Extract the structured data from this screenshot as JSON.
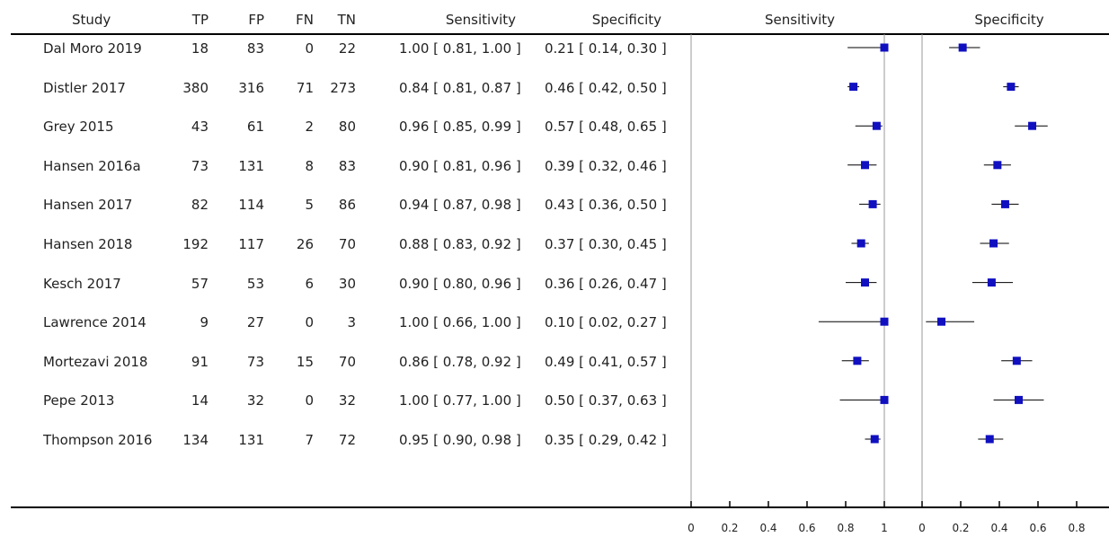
{
  "headers": {
    "study": "Study",
    "tp": "TP",
    "fp": "FP",
    "fn": "FN",
    "tn": "TN",
    "sensitivity": "Sensitivity",
    "specificity": "Specificity",
    "plot_sensitivity": "Sensitivity",
    "plot_specificity": "Specificity"
  },
  "rows": [
    {
      "study": "Dal Moro 2019",
      "tp": "18",
      "fp": "83",
      "fn": "0",
      "tn": "22",
      "sens": "1.00 [ 0.81, 1.00 ]",
      "spec": "0.21 [ 0.14, 0.30 ]"
    },
    {
      "study": "Distler 2017",
      "tp": "380",
      "fp": "316",
      "fn": "71",
      "tn": "273",
      "sens": "0.84 [ 0.81, 0.87 ]",
      "spec": "0.46 [ 0.42, 0.50 ]"
    },
    {
      "study": "Grey 2015",
      "tp": "43",
      "fp": "61",
      "fn": "2",
      "tn": "80",
      "sens": "0.96 [ 0.85, 0.99 ]",
      "spec": "0.57 [ 0.48, 0.65 ]"
    },
    {
      "study": "Hansen 2016a",
      "tp": "73",
      "fp": "131",
      "fn": "8",
      "tn": "83",
      "sens": "0.90 [ 0.81, 0.96 ]",
      "spec": "0.39 [ 0.32, 0.46 ]"
    },
    {
      "study": "Hansen 2017",
      "tp": "82",
      "fp": "114",
      "fn": "5",
      "tn": "86",
      "sens": "0.94 [ 0.87, 0.98 ]",
      "spec": "0.43 [ 0.36, 0.50 ]"
    },
    {
      "study": "Hansen 2018",
      "tp": "192",
      "fp": "117",
      "fn": "26",
      "tn": "70",
      "sens": "0.88 [ 0.83, 0.92 ]",
      "spec": "0.37 [ 0.30, 0.45 ]"
    },
    {
      "study": "Kesch 2017",
      "tp": "57",
      "fp": "53",
      "fn": "6",
      "tn": "30",
      "sens": "0.90 [ 0.80, 0.96 ]",
      "spec": "0.36 [ 0.26, 0.47 ]"
    },
    {
      "study": "Lawrence 2014",
      "tp": "9",
      "fp": "27",
      "fn": "0",
      "tn": "3",
      "sens": "1.00 [ 0.66, 1.00 ]",
      "spec": "0.10 [ 0.02, 0.27 ]"
    },
    {
      "study": "Mortezavi 2018",
      "tp": "91",
      "fp": "73",
      "fn": "15",
      "tn": "70",
      "sens": "0.86 [ 0.78, 0.92 ]",
      "spec": "0.49 [ 0.41, 0.57 ]"
    },
    {
      "study": "Pepe 2013",
      "tp": "14",
      "fp": "32",
      "fn": "0",
      "tn": "32",
      "sens": "1.00 [ 0.77, 1.00 ]",
      "spec": "0.50 [ 0.37, 0.63 ]"
    },
    {
      "study": "Thompson 2016",
      "tp": "134",
      "fp": "131",
      "fn": "7",
      "tn": "72",
      "sens": "0.95 [ 0.90, 0.98 ]",
      "spec": "0.35 [ 0.29, 0.42 ]"
    }
  ],
  "colors": {
    "marker": "#1010c0",
    "line": "#000000",
    "axis": "#999999"
  },
  "chart_data": {
    "type": "forest",
    "panels": [
      {
        "name": "Sensitivity",
        "xlim": [
          0,
          1
        ],
        "ticks": [
          0,
          0.2,
          0.4,
          0.6,
          0.8,
          1
        ],
        "tick_labels": [
          "0",
          "0.2",
          "0.4",
          "0.6",
          "0.8",
          "1"
        ],
        "categories": [
          "Dal Moro 2019",
          "Distler 2017",
          "Grey 2015",
          "Hansen 2016a",
          "Hansen 2017",
          "Hansen 2018",
          "Kesch 2017",
          "Lawrence 2014",
          "Mortezavi 2018",
          "Pepe 2013",
          "Thompson 2016"
        ],
        "estimate": [
          1.0,
          0.84,
          0.96,
          0.9,
          0.94,
          0.88,
          0.9,
          1.0,
          0.86,
          1.0,
          0.95
        ],
        "lower": [
          0.81,
          0.81,
          0.85,
          0.81,
          0.87,
          0.83,
          0.8,
          0.66,
          0.78,
          0.77,
          0.9
        ],
        "upper": [
          1.0,
          0.87,
          0.99,
          0.96,
          0.98,
          0.92,
          0.96,
          1.0,
          0.92,
          1.0,
          0.98
        ]
      },
      {
        "name": "Specificity",
        "xlim": [
          0,
          1
        ],
        "ticks": [
          0,
          0.2,
          0.4,
          0.6,
          0.8
        ],
        "tick_labels": [
          "0",
          "0.2",
          "0.4",
          "0.6",
          "0.8"
        ],
        "categories": [
          "Dal Moro 2019",
          "Distler 2017",
          "Grey 2015",
          "Hansen 2016a",
          "Hansen 2017",
          "Hansen 2018",
          "Kesch 2017",
          "Lawrence 2014",
          "Mortezavi 2018",
          "Pepe 2013",
          "Thompson 2016"
        ],
        "estimate": [
          0.21,
          0.46,
          0.57,
          0.39,
          0.43,
          0.37,
          0.36,
          0.1,
          0.49,
          0.5,
          0.35
        ],
        "lower": [
          0.14,
          0.42,
          0.48,
          0.32,
          0.36,
          0.3,
          0.26,
          0.02,
          0.41,
          0.37,
          0.29
        ],
        "upper": [
          0.3,
          0.5,
          0.65,
          0.46,
          0.5,
          0.45,
          0.47,
          0.27,
          0.57,
          0.63,
          0.42
        ]
      }
    ]
  }
}
